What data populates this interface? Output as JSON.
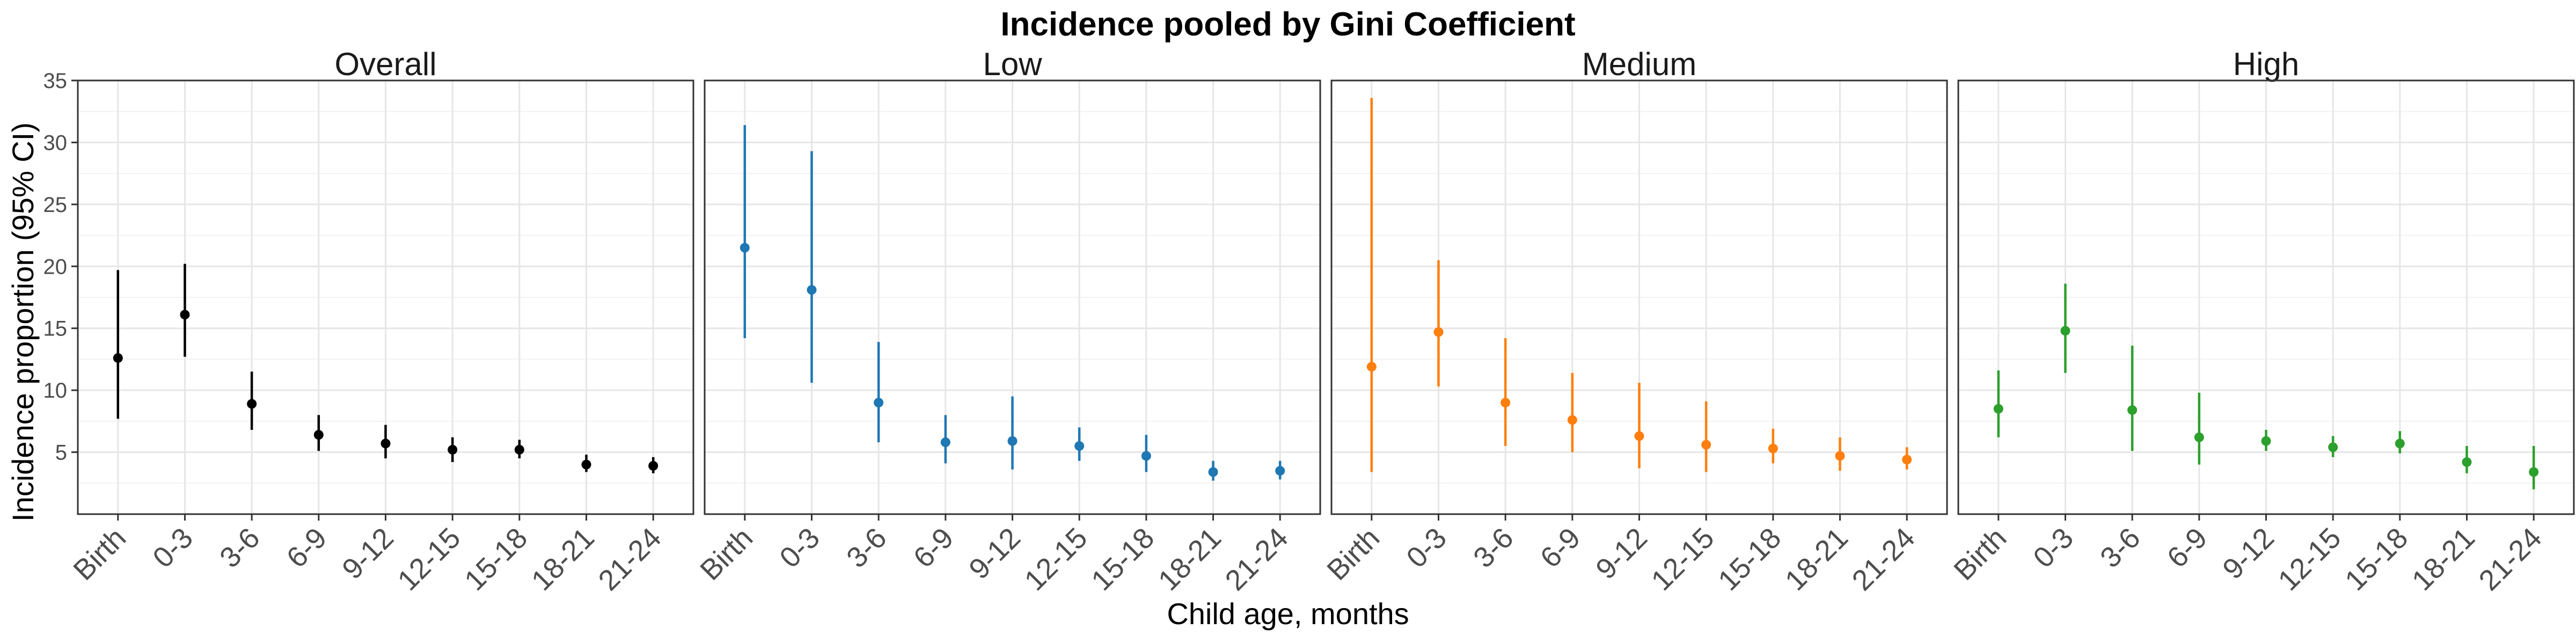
{
  "figure": {
    "title": "Incidence pooled by Gini Coefficient",
    "xlabel": "Child age, months",
    "ylabel": "Incidence proportion (95% CI)"
  },
  "chart_data": [
    {
      "type": "scatter",
      "panel": "Overall",
      "color": "#000000",
      "categories": [
        "Birth",
        "0-3",
        "3-6",
        "6-9",
        "9-12",
        "12-15",
        "15-18",
        "18-21",
        "21-24"
      ],
      "values": [
        12.6,
        16.1,
        8.9,
        6.4,
        5.7,
        5.2,
        5.2,
        4.0,
        3.9
      ],
      "ci_low": [
        7.7,
        12.7,
        6.8,
        5.1,
        4.5,
        4.2,
        4.5,
        3.4,
        3.3
      ],
      "ci_high": [
        19.7,
        20.2,
        11.5,
        8.0,
        7.2,
        6.2,
        6.0,
        4.8,
        4.6
      ],
      "ylim": [
        0,
        35
      ],
      "yticks": [
        5,
        10,
        15,
        20,
        25,
        30,
        35
      ],
      "grid": true
    },
    {
      "type": "scatter",
      "panel": "Low",
      "color": "#1f77b4",
      "categories": [
        "Birth",
        "0-3",
        "3-6",
        "6-9",
        "9-12",
        "12-15",
        "15-18",
        "18-21",
        "21-24"
      ],
      "values": [
        21.5,
        18.1,
        9.0,
        5.8,
        5.9,
        5.5,
        4.7,
        3.4,
        3.5
      ],
      "ci_low": [
        14.2,
        10.6,
        5.8,
        4.1,
        3.6,
        4.3,
        3.4,
        2.7,
        2.8
      ],
      "ci_high": [
        31.4,
        29.3,
        13.9,
        8.0,
        9.5,
        7.0,
        6.4,
        4.3,
        4.3
      ],
      "ylim": [
        0,
        35
      ],
      "yticks": [
        5,
        10,
        15,
        20,
        25,
        30,
        35
      ],
      "grid": true
    },
    {
      "type": "scatter",
      "panel": "Medium",
      "color": "#ff7f0e",
      "categories": [
        "Birth",
        "0-3",
        "3-6",
        "6-9",
        "9-12",
        "12-15",
        "15-18",
        "18-21",
        "21-24"
      ],
      "values": [
        11.9,
        14.7,
        9.0,
        7.6,
        6.3,
        5.6,
        5.3,
        4.7,
        4.4
      ],
      "ci_low": [
        3.4,
        10.3,
        5.5,
        5.0,
        3.7,
        3.4,
        4.1,
        3.5,
        3.6
      ],
      "ci_high": [
        33.6,
        20.5,
        14.2,
        11.4,
        10.6,
        9.1,
        6.9,
        6.2,
        5.4
      ],
      "ylim": [
        0,
        35
      ],
      "yticks": [
        5,
        10,
        15,
        20,
        25,
        30,
        35
      ],
      "grid": true
    },
    {
      "type": "scatter",
      "panel": "High",
      "color": "#2ca02c",
      "categories": [
        "Birth",
        "0-3",
        "3-6",
        "6-9",
        "9-12",
        "12-15",
        "15-18",
        "18-21",
        "21-24"
      ],
      "values": [
        8.5,
        14.8,
        8.4,
        6.2,
        5.9,
        5.4,
        5.7,
        4.2,
        3.4
      ],
      "ci_low": [
        6.2,
        11.4,
        5.1,
        4.0,
        5.1,
        4.6,
        4.9,
        3.3,
        2.0
      ],
      "ci_high": [
        11.6,
        18.6,
        13.6,
        9.8,
        6.8,
        6.3,
        6.7,
        5.5,
        5.5
      ],
      "ylim": [
        0,
        35
      ],
      "yticks": [
        5,
        10,
        15,
        20,
        25,
        30,
        35
      ],
      "grid": true
    }
  ]
}
